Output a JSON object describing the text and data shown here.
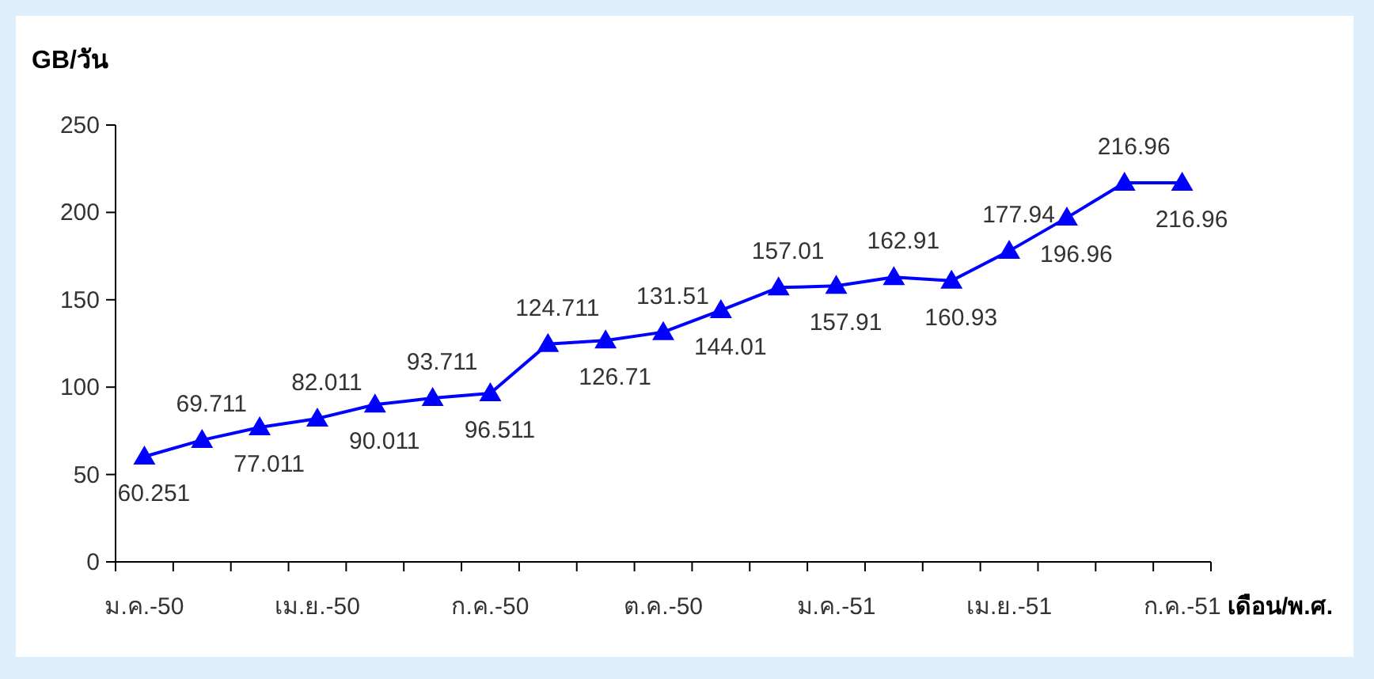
{
  "chart_data": {
    "type": "line",
    "ylabel": "GB/วัน",
    "xlabel": "เดือน/พ.ศ.",
    "categories": [
      "ม.ค.-50",
      null,
      null,
      "เม.ย.-50",
      null,
      null,
      "ก.ค.-50",
      null,
      null,
      "ต.ค.-50",
      null,
      null,
      "ม.ค.-51",
      null,
      null,
      "เม.ย.-51",
      null,
      null,
      "ก.ค.-51"
    ],
    "series": [
      {
        "color": "#0000ff",
        "values": [
          60.251,
          69.711,
          77.011,
          82.011,
          90.011,
          93.711,
          96.511,
          124.711,
          126.71,
          131.51,
          144.01,
          157.01,
          157.91,
          162.91,
          160.93,
          177.94,
          196.96,
          216.96,
          216.96
        ]
      }
    ],
    "ylim": [
      0,
      250
    ],
    "yticks": [
      0,
      50,
      100,
      150,
      200,
      250
    ],
    "marker": "triangle",
    "line_style": "solid",
    "data_labels": true
  }
}
